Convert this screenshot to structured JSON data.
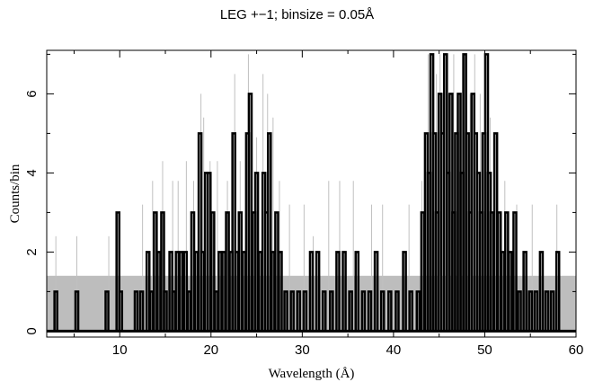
{
  "chart_data": {
    "type": "line",
    "title": "LEG +−1; binsize = 0.05Å",
    "xlabel": "Wavelength (Å)",
    "ylabel": "Counts/bin",
    "xlim": [
      2.0,
      60.0
    ],
    "ylim": [
      -0.15,
      7.1
    ],
    "xticks": [
      10,
      20,
      30,
      40,
      50,
      60
    ],
    "yticks": [
      0,
      2,
      4,
      6
    ],
    "xtick_labels": [
      "10",
      "20",
      "30",
      "40",
      "50",
      "60"
    ],
    "ytick_labels": [
      "0",
      "2",
      "4",
      "6"
    ],
    "grid": false,
    "colors": {
      "counts": "#000000",
      "rebinned_detail": "#c0c0c0",
      "background_band": "#bdbdbd"
    },
    "series": [
      {
        "role": "background band",
        "style": "filled band",
        "x": [
          2.0,
          60.0
        ],
        "y": [
          1.4,
          1.4
        ]
      },
      {
        "role": "light gray histogram",
        "style": "thin vertical lines",
        "note_values": "estimated peak heights",
        "x": [
          3.0,
          5.3,
          8.8,
          12.5,
          13.6,
          14.7,
          15.8,
          16.4,
          17.3,
          18.1,
          18.9,
          19.2,
          19.9,
          20.7,
          21.8,
          22.6,
          23.2,
          24.1,
          24.4,
          25.0,
          25.7,
          26.2,
          26.8,
          27.5,
          28.6,
          30.2,
          31.2,
          32.9,
          34.1,
          35.6,
          37.6,
          38.8,
          41.7,
          43.1,
          43.8,
          44.3,
          44.7,
          45.1,
          45.6,
          46.0,
          46.6,
          47.2,
          47.8,
          48.4,
          48.9,
          49.5,
          50.1,
          50.6,
          51.3,
          52.2,
          53.5,
          55.2,
          57.9
        ],
        "y": [
          2.4,
          2.4,
          2.4,
          3.2,
          3.8,
          4.3,
          3.8,
          3.8,
          4.3,
          3.8,
          6.0,
          5.4,
          4.3,
          4.3,
          3.8,
          6.5,
          4.3,
          7.0,
          5.4,
          4.9,
          6.5,
          6.0,
          5.4,
          3.8,
          3.2,
          3.2,
          2.4,
          3.8,
          3.8,
          3.8,
          3.2,
          3.2,
          3.2,
          3.8,
          7.0,
          7.0,
          6.5,
          7.0,
          6.5,
          6.0,
          7.0,
          6.0,
          7.0,
          6.0,
          7.0,
          6.0,
          6.0,
          5.4,
          3.8,
          3.8,
          3.2,
          3.2,
          3.2
        ]
      },
      {
        "role": "black histogram",
        "style": "step histogram",
        "note_values": "estimated bin counts",
        "x": [
          3.0,
          5.3,
          8.6,
          9.8,
          10.1,
          11.8,
          12.4,
          13.1,
          13.5,
          13.9,
          14.3,
          14.7,
          15.0,
          15.6,
          15.9,
          16.3,
          16.7,
          17.2,
          17.6,
          18.0,
          18.4,
          18.8,
          19.1,
          19.5,
          19.8,
          20.2,
          20.6,
          21.0,
          21.4,
          21.8,
          22.2,
          22.5,
          22.8,
          23.2,
          23.6,
          24.0,
          24.3,
          24.7,
          25.0,
          25.4,
          25.8,
          26.1,
          26.4,
          26.8,
          27.2,
          27.6,
          28.2,
          28.9,
          29.6,
          30.3,
          31.0,
          31.7,
          32.4,
          33.2,
          33.9,
          34.6,
          35.3,
          36.0,
          36.7,
          37.4,
          38.1,
          38.8,
          39.6,
          40.4,
          41.2,
          41.9,
          42.7,
          43.2,
          43.6,
          43.9,
          44.2,
          44.5,
          44.8,
          45.1,
          45.4,
          45.7,
          46.0,
          46.3,
          46.6,
          46.9,
          47.2,
          47.5,
          47.8,
          48.1,
          48.4,
          48.7,
          49.0,
          49.3,
          49.6,
          49.9,
          50.2,
          50.5,
          50.8,
          51.2,
          51.6,
          52.0,
          52.4,
          52.8,
          53.3,
          53.8,
          54.4,
          55.0,
          55.6,
          56.2,
          56.8,
          57.4,
          58.0
        ],
        "y": [
          1,
          1,
          1,
          3,
          1,
          1,
          1,
          2,
          1,
          3,
          2,
          3,
          1,
          2,
          1,
          2,
          2,
          2,
          1,
          3,
          2,
          5,
          2,
          4,
          4,
          3,
          1,
          2,
          2,
          3,
          2,
          5,
          2,
          3,
          2,
          5,
          6,
          3,
          4,
          2,
          4,
          3,
          5,
          2,
          3,
          2,
          1,
          1,
          1,
          1,
          2,
          2,
          1,
          1,
          2,
          2,
          1,
          2,
          1,
          1,
          2,
          1,
          1,
          1,
          2,
          1,
          1,
          3,
          5,
          4,
          7,
          5,
          3,
          6,
          5,
          7,
          4,
          6,
          3,
          5,
          6,
          4,
          7,
          5,
          3,
          6,
          5,
          4,
          3,
          5,
          7,
          4,
          3,
          5,
          3,
          2,
          3,
          2,
          3,
          1,
          2,
          1,
          1,
          2,
          1,
          1,
          2
        ]
      }
    ]
  }
}
